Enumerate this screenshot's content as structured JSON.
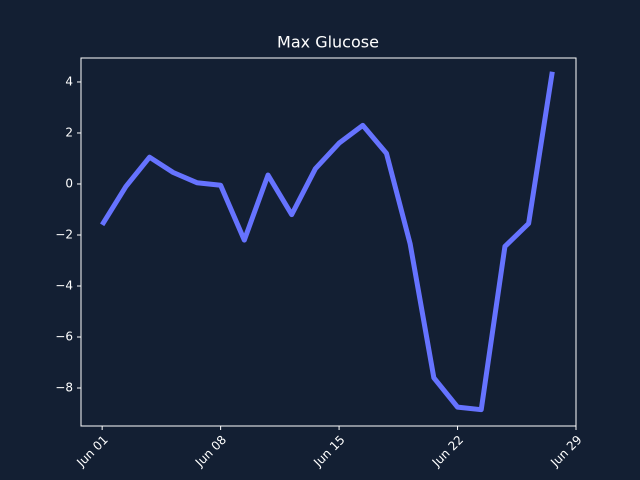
{
  "chart_data": {
    "type": "line",
    "title": "Max Glucose",
    "x": [
      1,
      2.4,
      3.8,
      5.2,
      6.6,
      8,
      9.4,
      10.8,
      12.2,
      13.6,
      15,
      16.4,
      17.8,
      19.2,
      20.6,
      22,
      23.4,
      24.8,
      26.2,
      27.6
    ],
    "series": [
      {
        "name": "Max Glucose",
        "color": "#6673ff",
        "values": [
          -1.6,
          -0.1,
          1.05,
          0.45,
          0.05,
          -0.05,
          -2.2,
          0.35,
          -1.2,
          0.6,
          1.6,
          2.3,
          1.2,
          -2.35,
          -7.6,
          -8.75,
          -8.85,
          -2.45,
          -1.55,
          4.4
        ]
      }
    ],
    "xlim": [
      -0.25,
      29
    ],
    "xticks": [
      {
        "value": 1,
        "label": "Jun 01"
      },
      {
        "value": 8,
        "label": "Jun 08"
      },
      {
        "value": 15,
        "label": "Jun 15"
      },
      {
        "value": 22,
        "label": "Jun 22"
      },
      {
        "value": 29,
        "label": "Jun 29"
      }
    ],
    "ylim": [
      -9.49,
      4.94
    ],
    "yticks": [
      {
        "value": -8,
        "label": "−8"
      },
      {
        "value": -6,
        "label": "−6"
      },
      {
        "value": -4,
        "label": "−4"
      },
      {
        "value": -2,
        "label": "−2"
      },
      0,
      2,
      4
    ]
  }
}
